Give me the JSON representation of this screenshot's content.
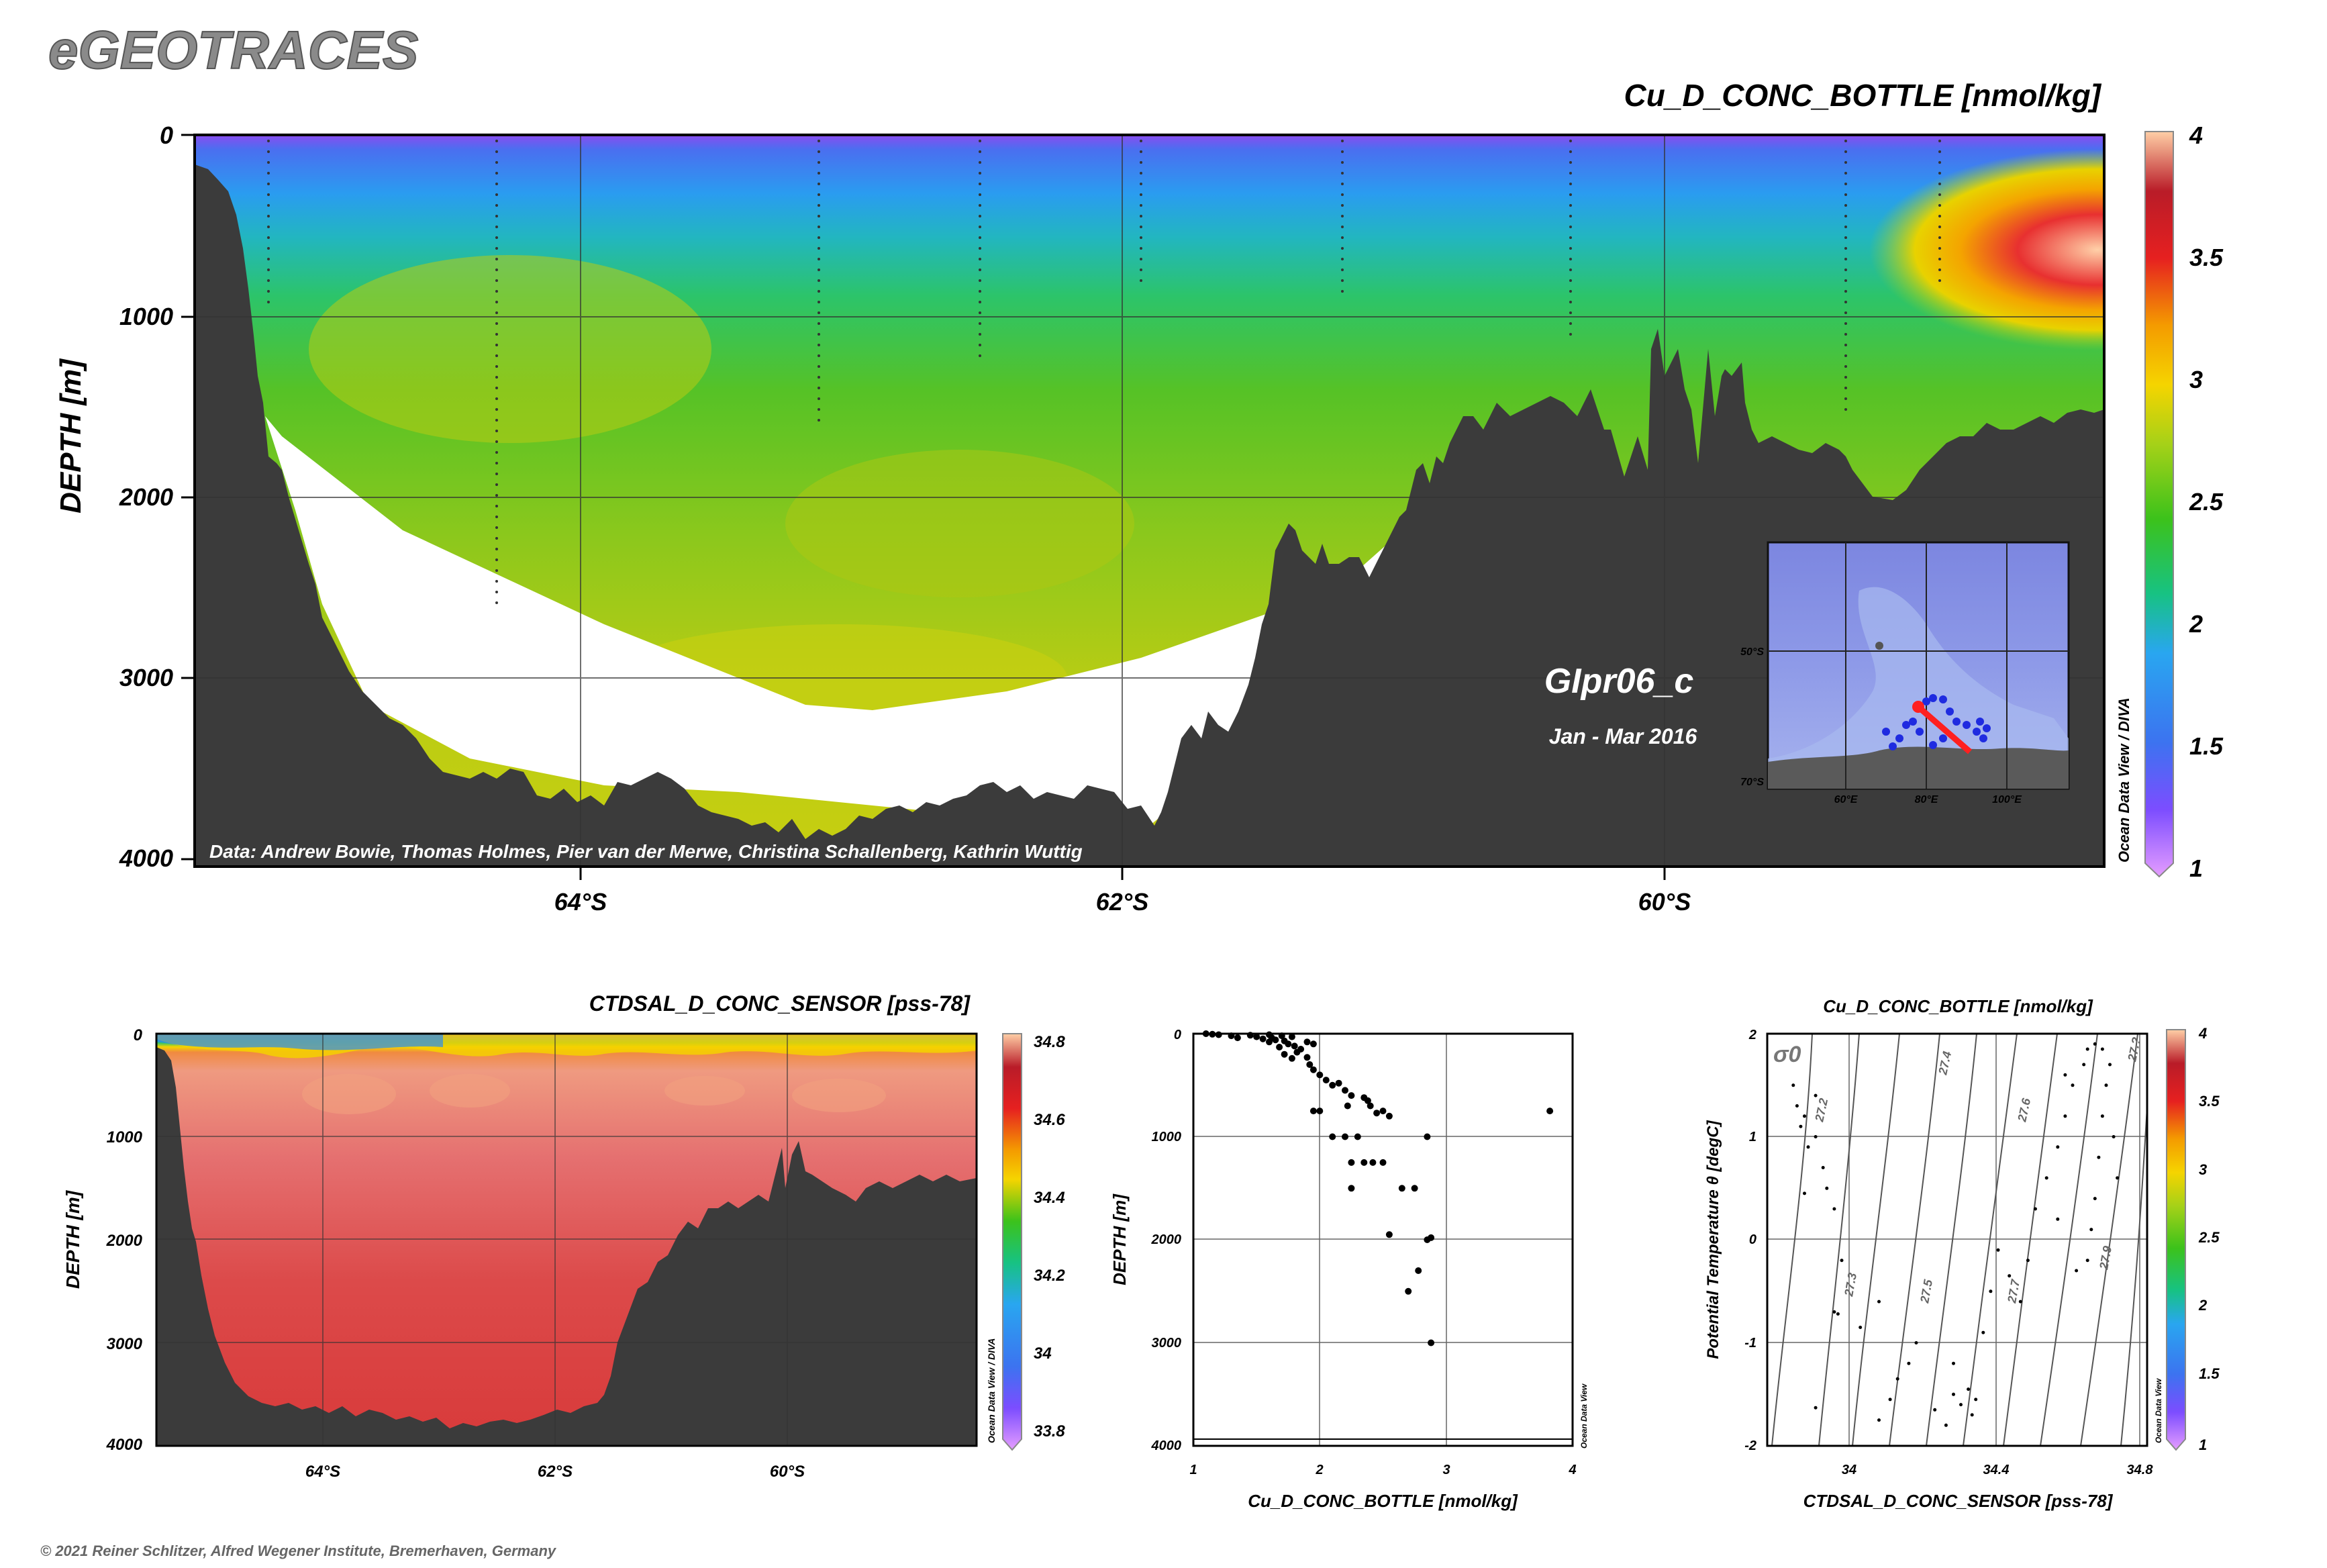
{
  "app_title": "eGEOTRACES",
  "copyright": "© 2021 Reiner Schlitzer, Alfred Wegener Institute, Bremerhaven, Germany",
  "colormap": [
    "#e59dff",
    "#7c4dff",
    "#3c73f0",
    "#29a6f0",
    "#17c282",
    "#3cc21b",
    "#a5d118",
    "#f5d400",
    "#f49b00",
    "#e62020",
    "#b91c28",
    "#ffcfa6"
  ],
  "chart_data": [
    {
      "id": "main_section",
      "type": "heatmap",
      "title": "Cu_D_CONC_BOTTLE [nmol/kg]",
      "ylabel": "DEPTH [m]",
      "xlabel": "",
      "ylim": [
        4000,
        0
      ],
      "y_ticks": [
        "0",
        "1000",
        "2000",
        "3000",
        "4000"
      ],
      "x_ticks": [
        "64°S",
        "62°S",
        "60°S"
      ],
      "colorbar_ticks": [
        "4",
        "3.5",
        "3",
        "2.5",
        "2",
        "1.5",
        "1"
      ],
      "colorbar_range": [
        1,
        4
      ],
      "station_label": "GIpr06_c",
      "date_label": "Jan - Mar 2016",
      "credit": "Data: Andrew Bowie, Thomas Holmes, Pier van der Merwe, Christina Schallenberg, Kathrin Wuttig",
      "watermark": "Ocean Data View / DIVA",
      "inset_map": {
        "lat_labels": [
          "50°S",
          "70°S"
        ],
        "lon_labels": [
          "60°E",
          "80°E",
          "100°E"
        ]
      }
    },
    {
      "id": "salinity_section",
      "type": "heatmap",
      "title": "CTDSAL_D_CONC_SENSOR [pss-78]",
      "ylabel": "DEPTH [m]",
      "ylim": [
        4000,
        0
      ],
      "y_ticks": [
        "0",
        "1000",
        "2000",
        "3000",
        "4000"
      ],
      "x_ticks": [
        "64°S",
        "62°S",
        "60°S"
      ],
      "colorbar_ticks": [
        "34.8",
        "34.6",
        "34.4",
        "34.2",
        "34",
        "33.8"
      ],
      "colorbar_range": [
        33.75,
        34.85
      ],
      "watermark": "Ocean Data View / DIVA"
    },
    {
      "id": "profile",
      "type": "scatter",
      "title": "",
      "xlabel": "Cu_D_CONC_BOTTLE [nmol/kg]",
      "ylabel": "DEPTH [m]",
      "xlim": [
        1,
        4
      ],
      "ylim": [
        4000,
        0
      ],
      "x_ticks": [
        "1",
        "2",
        "3",
        "4"
      ],
      "y_ticks": [
        "0",
        "1000",
        "2000",
        "3000",
        "4000"
      ],
      "watermark": "Ocean Data View",
      "points": [
        [
          1.1,
          0
        ],
        [
          1.15,
          5
        ],
        [
          1.2,
          10
        ],
        [
          1.3,
          20
        ],
        [
          1.35,
          40
        ],
        [
          1.45,
          15
        ],
        [
          1.5,
          30
        ],
        [
          1.55,
          50
        ],
        [
          1.6,
          10
        ],
        [
          1.62,
          40
        ],
        [
          1.65,
          60
        ],
        [
          1.7,
          20
        ],
        [
          1.72,
          70
        ],
        [
          1.75,
          100
        ],
        [
          1.78,
          30
        ],
        [
          1.8,
          120
        ],
        [
          1.85,
          150
        ],
        [
          1.9,
          80
        ],
        [
          1.95,
          100
        ],
        [
          1.6,
          80
        ],
        [
          1.68,
          130
        ],
        [
          1.72,
          200
        ],
        [
          1.78,
          240
        ],
        [
          1.82,
          180
        ],
        [
          1.9,
          230
        ],
        [
          1.92,
          300
        ],
        [
          1.95,
          350
        ],
        [
          2.0,
          400
        ],
        [
          2.05,
          450
        ],
        [
          2.1,
          500
        ],
        [
          2.15,
          480
        ],
        [
          2.2,
          550
        ],
        [
          2.25,
          600
        ],
        [
          2.35,
          620
        ],
        [
          2.38,
          650
        ],
        [
          2.4,
          700
        ],
        [
          2.22,
          700
        ],
        [
          1.95,
          750
        ],
        [
          2.0,
          750
        ],
        [
          2.45,
          770
        ],
        [
          2.5,
          750
        ],
        [
          2.55,
          800
        ],
        [
          2.2,
          1000
        ],
        [
          2.1,
          1000
        ],
        [
          2.3,
          1000
        ],
        [
          2.85,
          1000
        ],
        [
          2.25,
          1250
        ],
        [
          2.35,
          1250
        ],
        [
          2.42,
          1250
        ],
        [
          2.5,
          1250
        ],
        [
          2.25,
          1500
        ],
        [
          2.65,
          1500
        ],
        [
          2.75,
          1500
        ],
        [
          2.55,
          1950
        ],
        [
          2.85,
          2000
        ],
        [
          2.88,
          1980
        ],
        [
          2.78,
          2300
        ],
        [
          2.7,
          2500
        ],
        [
          2.88,
          3000
        ],
        [
          3.82,
          750
        ]
      ]
    },
    {
      "id": "ts_diagram",
      "type": "scatter",
      "title": "Cu_D_CONC_BOTTLE [nmol/kg]",
      "xlabel": "CTDSAL_D_CONC_SENSOR [pss-78]",
      "ylabel": "Potential Temperature θ [degC]",
      "xlim": [
        33.8,
        34.82
      ],
      "ylim": [
        -2,
        2
      ],
      "x_ticks": [
        "34",
        "34.4",
        "34.8"
      ],
      "y_ticks": [
        "2",
        "1",
        "0",
        "-1",
        "-2"
      ],
      "sigma_label": "σ0",
      "isopycnal_labels": [
        "27.2",
        "27.3",
        "27.4",
        "27.5",
        "27.6",
        "27.7",
        "27.9",
        "27.?"
      ],
      "colorbar_ticks": [
        "4",
        "3.5",
        "3",
        "2.5",
        "2",
        "1.5",
        "1"
      ],
      "watermark": "Ocean Data View",
      "points": [
        [
          33.87,
          1.5
        ],
        [
          33.88,
          1.3
        ],
        [
          33.89,
          1.1
        ],
        [
          33.9,
          1.2
        ],
        [
          33.91,
          0.9
        ],
        [
          33.93,
          1.0
        ],
        [
          33.95,
          0.7
        ],
        [
          33.96,
          0.5
        ],
        [
          33.9,
          0.45
        ],
        [
          33.98,
          0.3
        ],
        [
          33.93,
          1.4
        ],
        [
          34.0,
          -0.2
        ],
        [
          33.98,
          -0.7
        ],
        [
          33.99,
          -0.72
        ],
        [
          34.05,
          -0.85
        ],
        [
          34.1,
          -0.6
        ],
        [
          33.93,
          -1.63
        ],
        [
          34.1,
          -1.75
        ],
        [
          34.13,
          -1.55
        ],
        [
          34.15,
          -1.35
        ],
        [
          34.18,
          -1.2
        ],
        [
          34.2,
          -1.0
        ],
        [
          34.25,
          -1.65
        ],
        [
          34.28,
          -1.8
        ],
        [
          34.3,
          -1.5
        ],
        [
          34.32,
          -1.6
        ],
        [
          34.35,
          -1.7
        ],
        [
          34.3,
          -1.2
        ],
        [
          34.34,
          -1.45
        ],
        [
          34.36,
          -1.55
        ],
        [
          34.4,
          -0.5
        ],
        [
          34.42,
          -0.1
        ],
        [
          34.45,
          -0.35
        ],
        [
          34.5,
          -0.2
        ],
        [
          34.52,
          0.3
        ],
        [
          34.55,
          0.6
        ],
        [
          34.58,
          0.9
        ],
        [
          34.6,
          1.2
        ],
        [
          34.62,
          1.5
        ],
        [
          34.65,
          1.7
        ],
        [
          34.66,
          1.85
        ],
        [
          34.68,
          1.9
        ],
        [
          34.7,
          1.85
        ],
        [
          34.72,
          1.7
        ],
        [
          34.7,
          1.2
        ],
        [
          34.69,
          0.8
        ],
        [
          34.68,
          0.4
        ],
        [
          34.67,
          0.1
        ],
        [
          34.66,
          -0.2
        ],
        [
          34.71,
          1.5
        ],
        [
          34.73,
          1.0
        ],
        [
          34.74,
          0.6
        ],
        [
          34.63,
          -0.3
        ],
        [
          34.6,
          1.6
        ],
        [
          34.58,
          0.2
        ],
        [
          34.48,
          -0.6
        ],
        [
          34.38,
          -0.9
        ]
      ]
    }
  ]
}
